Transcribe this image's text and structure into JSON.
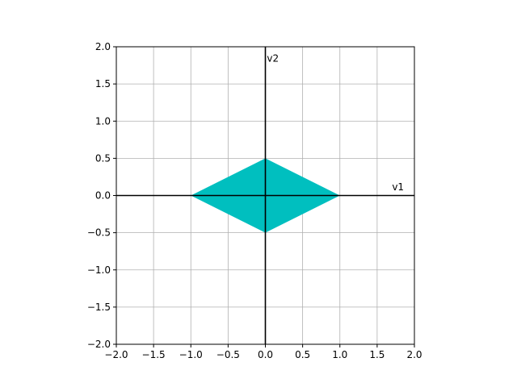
{
  "chart_data": {
    "type": "area",
    "title": "",
    "xlabel": "",
    "ylabel": "",
    "xlim": [
      -2.0,
      2.0
    ],
    "ylim": [
      -2.0,
      2.0
    ],
    "xticks": [
      -2.0,
      -1.5,
      -1.0,
      -0.5,
      0.0,
      0.5,
      1.0,
      1.5,
      2.0
    ],
    "yticks": [
      -2.0,
      -1.5,
      -1.0,
      -0.5,
      0.0,
      0.5,
      1.0,
      1.5,
      2.0
    ],
    "xtick_labels": [
      "−2.0",
      "−1.5",
      "−1.0",
      "−0.5",
      "0.0",
      "0.5",
      "1.0",
      "1.5",
      "2.0"
    ],
    "ytick_labels": [
      "−2.0",
      "−1.5",
      "−1.0",
      "−0.5",
      "0.0",
      "0.5",
      "1.0",
      "1.5",
      "2.0"
    ],
    "grid": true,
    "shapes": [
      {
        "kind": "polygon",
        "color": "#00bfbf",
        "points": [
          [
            1.0,
            0.0
          ],
          [
            0.0,
            0.5
          ],
          [
            -1.0,
            0.0
          ],
          [
            0.0,
            -0.5
          ]
        ]
      }
    ],
    "axis_lines": [
      {
        "from": [
          -2.0,
          0.0
        ],
        "to": [
          2.0,
          0.0
        ],
        "color": "#000000"
      },
      {
        "from": [
          0.0,
          -2.0
        ],
        "to": [
          0.0,
          2.0
        ],
        "color": "#000000"
      }
    ],
    "annotations": [
      {
        "text": "v1",
        "x": 1.7,
        "y": 0.07
      },
      {
        "text": "v2",
        "x": 0.02,
        "y": 1.8
      }
    ]
  }
}
